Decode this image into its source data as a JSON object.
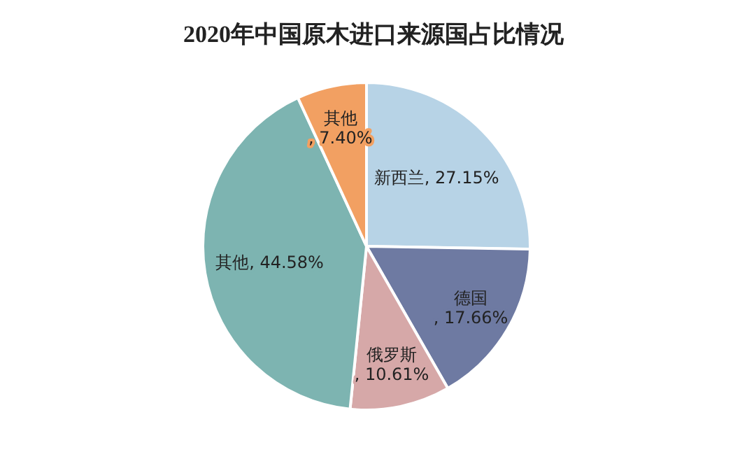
{
  "chart_data": {
    "type": "pie",
    "title": "2020年中国原木进口来源国占比情况",
    "categories": [
      "新西兰",
      "德国",
      "俄罗斯",
      "其他",
      "其他"
    ],
    "values": [
      27.15,
      17.66,
      10.61,
      44.58,
      7.4
    ],
    "colors": [
      "#b7d3e6",
      "#6e7aa2",
      "#d6a8a8",
      "#7db4b1",
      "#f2a062"
    ],
    "value_labels": [
      ", 27.15%",
      ", 17.66%",
      ", 10.61%",
      ", 44.58%",
      ", 7.40%"
    ]
  }
}
